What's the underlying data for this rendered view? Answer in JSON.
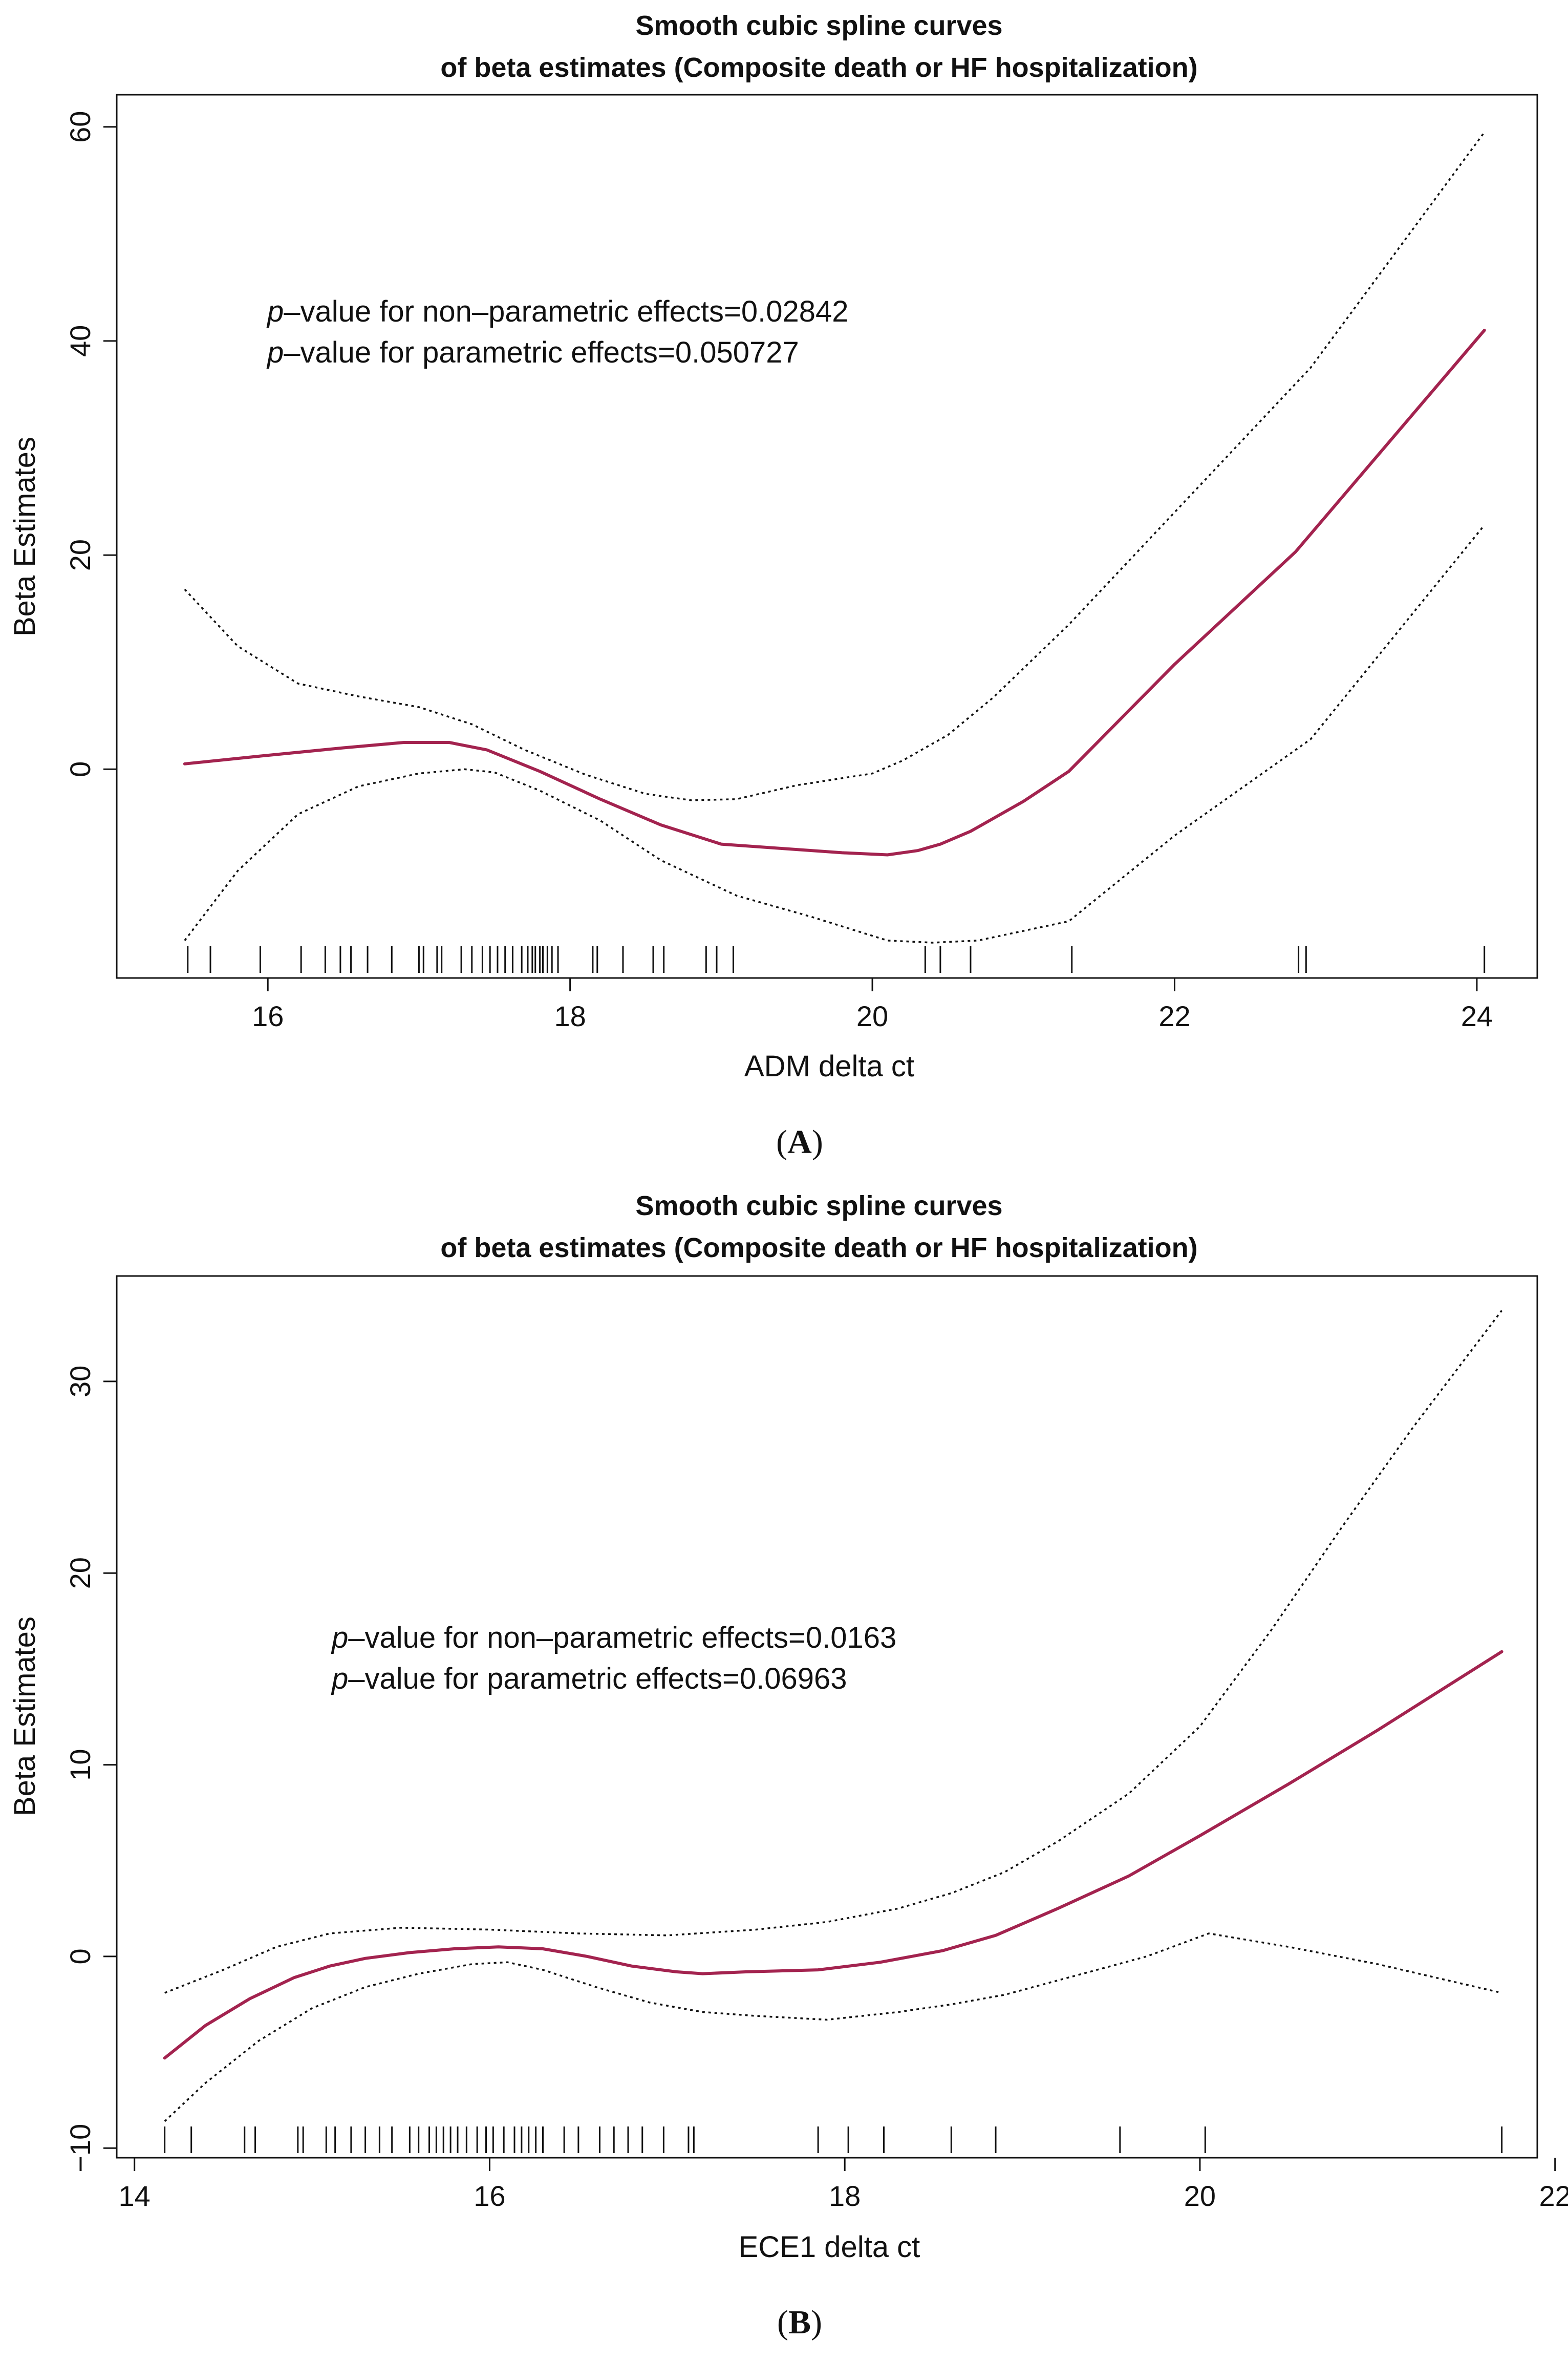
{
  "colors": {
    "fit_line": "#a3234f",
    "ci_line": "#111111",
    "axis": "#111111"
  },
  "chart_data": [
    {
      "type": "line",
      "panel_label": "A",
      "title": "Smooth cubic spline curves",
      "subtitle": "of beta estimates (Composite death or HF hospitalization)",
      "xlabel": "ADM delta ct",
      "ylabel": "Beta Estimates",
      "xlim": [
        15.0,
        24.4
      ],
      "ylim": [
        -19.5,
        63
      ],
      "xticks": [
        16,
        18,
        20,
        22,
        24
      ],
      "yticks": [
        0,
        20,
        40,
        60
      ],
      "annotations": [
        {
          "prefix": "p",
          "text": "–value for non–parametric effects=0.02842"
        },
        {
          "prefix": "p",
          "text": "–value for parametric effects=0.050727"
        }
      ],
      "series": [
        {
          "name": "Beta estimate",
          "x": [
            15.45,
            16.0,
            16.5,
            16.9,
            17.2,
            17.45,
            17.8,
            18.2,
            18.6,
            19.0,
            19.4,
            19.8,
            20.1,
            20.3,
            20.45,
            20.65,
            21.0,
            21.3,
            22.0,
            22.8,
            24.05
          ],
          "y": [
            0.5,
            1.3,
            2.0,
            2.5,
            2.5,
            1.8,
            -0.2,
            -2.8,
            -5.2,
            -7.0,
            -7.4,
            -7.8,
            -8.0,
            -7.6,
            -7.0,
            -5.8,
            -3.0,
            -0.2,
            9.8,
            20.3,
            41
          ]
        },
        {
          "name": "Upper bound",
          "x": [
            15.45,
            15.8,
            16.2,
            16.6,
            17.0,
            17.35,
            17.7,
            18.1,
            18.5,
            18.8,
            19.1,
            19.5,
            20.0,
            20.2,
            20.5,
            20.8,
            21.3,
            22.0,
            22.9,
            24.05
          ],
          "y": [
            16.8,
            11.5,
            8.0,
            6.8,
            5.8,
            4.2,
            1.8,
            -0.5,
            -2.3,
            -2.9,
            -2.8,
            -1.5,
            -0.4,
            0.8,
            3.2,
            6.7,
            13.5,
            24.0,
            37.5,
            59.5
          ]
        },
        {
          "name": "Lower bound",
          "x": [
            15.45,
            15.8,
            16.2,
            16.6,
            17.0,
            17.3,
            17.5,
            17.8,
            18.2,
            18.6,
            19.1,
            19.6,
            20.1,
            20.4,
            20.7,
            21.3,
            22.0,
            22.9,
            24.05
          ],
          "y": [
            -16.0,
            -9.5,
            -4.2,
            -1.6,
            -0.4,
            0.0,
            -0.3,
            -2.0,
            -4.8,
            -8.5,
            -11.8,
            -13.8,
            -16.0,
            -16.2,
            -16.0,
            -14.2,
            -6.2,
            2.8,
            22.8
          ]
        }
      ],
      "rug": [
        15.47,
        15.62,
        15.95,
        16.22,
        16.38,
        16.48,
        16.55,
        16.66,
        16.82,
        17.0,
        17.03,
        17.12,
        17.15,
        17.28,
        17.35,
        17.42,
        17.47,
        17.52,
        17.57,
        17.62,
        17.68,
        17.72,
        17.75,
        17.77,
        17.8,
        17.82,
        17.85,
        17.88,
        17.92,
        18.15,
        18.18,
        18.35,
        18.55,
        18.62,
        18.9,
        18.97,
        19.08,
        20.35,
        20.45,
        20.65,
        21.32,
        22.82,
        22.87,
        24.05
      ]
    },
    {
      "type": "line",
      "panel_label": "B",
      "title": "Smooth cubic spline curves",
      "subtitle": "of beta estimates (Composite death or HF hospitalization)",
      "xlabel": "ECE1 delta ct",
      "ylabel": "Beta Estimates",
      "xlim": [
        13.9,
        21.9
      ],
      "ylim": [
        -10.5,
        35.5
      ],
      "xticks": [
        14,
        16,
        18,
        20,
        22
      ],
      "yticks": [
        -10,
        0,
        10,
        20,
        30
      ],
      "annotations": [
        {
          "prefix": "p",
          "text": "–value for non–parametric effects=0.0163"
        },
        {
          "prefix": "p",
          "text": "–value for parametric effects=0.06963"
        }
      ],
      "series": [
        {
          "name": "Beta estimate",
          "x": [
            14.17,
            14.4,
            14.65,
            14.9,
            15.1,
            15.3,
            15.55,
            15.8,
            16.05,
            16.3,
            16.55,
            16.8,
            17.05,
            17.2,
            17.45,
            17.85,
            18.2,
            18.55,
            18.85,
            19.2,
            19.6,
            20.0,
            20.5,
            21.0,
            21.7
          ],
          "y": [
            -5.3,
            -3.6,
            -2.2,
            -1.1,
            -0.5,
            -0.1,
            0.2,
            0.4,
            0.5,
            0.4,
            0.0,
            -0.5,
            -0.8,
            -0.9,
            -0.8,
            -0.7,
            -0.3,
            0.3,
            1.1,
            2.5,
            4.2,
            6.3,
            9.0,
            11.8,
            15.9
          ]
        },
        {
          "name": "Upper bound",
          "x": [
            14.17,
            14.5,
            14.8,
            15.1,
            15.5,
            16.0,
            16.5,
            17.0,
            17.5,
            17.9,
            18.3,
            18.6,
            18.9,
            19.2,
            19.6,
            20.0,
            20.4,
            20.8,
            21.2,
            21.7
          ],
          "y": [
            -1.9,
            -0.7,
            0.5,
            1.2,
            1.5,
            1.4,
            1.2,
            1.1,
            1.4,
            1.8,
            2.5,
            3.3,
            4.4,
            6.0,
            8.5,
            12.0,
            17.0,
            22.4,
            27.6,
            33.7
          ]
        },
        {
          "name": "Lower bound",
          "x": [
            14.17,
            14.4,
            14.7,
            15.0,
            15.3,
            15.6,
            15.9,
            16.1,
            16.3,
            16.6,
            16.9,
            17.2,
            17.5,
            17.9,
            18.3,
            18.6,
            18.9,
            19.3,
            19.7,
            20.05,
            20.5,
            21.0,
            21.7
          ],
          "y": [
            -8.6,
            -6.6,
            -4.4,
            -2.7,
            -1.6,
            -0.9,
            -0.4,
            -0.3,
            -0.7,
            -1.6,
            -2.4,
            -2.9,
            -3.1,
            -3.3,
            -2.9,
            -2.5,
            -2.0,
            -1.0,
            0.0,
            1.2,
            0.5,
            -0.4,
            -1.9
          ]
        }
      ],
      "rug": [
        14.17,
        14.32,
        14.62,
        14.68,
        14.92,
        14.95,
        15.08,
        15.13,
        15.22,
        15.3,
        15.38,
        15.45,
        15.55,
        15.6,
        15.66,
        15.7,
        15.74,
        15.78,
        15.82,
        15.87,
        15.93,
        15.98,
        16.02,
        16.08,
        16.14,
        16.18,
        16.22,
        16.26,
        16.3,
        16.42,
        16.5,
        16.62,
        16.7,
        16.78,
        16.86,
        16.98,
        17.12,
        17.15,
        17.85,
        18.02,
        18.22,
        18.6,
        18.85,
        19.55,
        20.03,
        21.7
      ]
    }
  ]
}
